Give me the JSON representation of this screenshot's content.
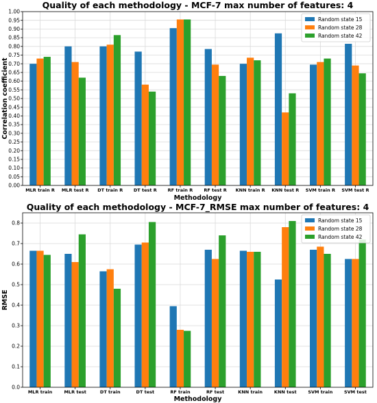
{
  "chart_data": [
    {
      "type": "bar",
      "title": "Quality of each methodology - MCF-7 max number of features: 4",
      "xlabel": "Methodology",
      "ylabel": "Correlation coefficient",
      "ylim": [
        0,
        1.0
      ],
      "yticks": [
        0.0,
        0.05,
        0.1,
        0.15,
        0.2,
        0.25,
        0.3,
        0.35,
        0.4,
        0.45,
        0.5,
        0.55,
        0.6,
        0.65,
        0.7,
        0.75,
        0.8,
        0.85,
        0.9,
        0.95,
        1.0
      ],
      "ytick_labels": [
        "0.00",
        "0.05",
        "0.10",
        "0.15",
        "0.20",
        "0.25",
        "0.30",
        "0.35",
        "0.40",
        "0.45",
        "0.50",
        "0.55",
        "0.60",
        "0.65",
        "0.70",
        "0.75",
        "0.80",
        "0.85",
        "0.90",
        "0.95",
        "1.00"
      ],
      "grid": true,
      "legend_position": "top-right",
      "categories": [
        "MLR train R",
        "MLR test R",
        "DT train R",
        "DT test R",
        "RF train R",
        "RF test R",
        "KNN train R",
        "KNN test R",
        "SVM train R",
        "SVM test R"
      ],
      "series": [
        {
          "name": "Random state 15",
          "color": "#1f77b4",
          "values": [
            0.7,
            0.8,
            0.8,
            0.77,
            0.905,
            0.785,
            0.7,
            0.875,
            0.695,
            0.815
          ]
        },
        {
          "name": "Random state 28",
          "color": "#ff7f0e",
          "values": [
            0.73,
            0.71,
            0.81,
            0.58,
            0.955,
            0.695,
            0.735,
            0.42,
            0.71,
            0.69
          ]
        },
        {
          "name": "Random state 42",
          "color": "#2ca02c",
          "values": [
            0.74,
            0.62,
            0.865,
            0.54,
            0.955,
            0.63,
            0.72,
            0.53,
            0.73,
            0.645
          ]
        }
      ]
    },
    {
      "type": "bar",
      "title": "Quality of each methodology - MCF-7_RMSE max number of features: 4",
      "xlabel": "Methodology",
      "ylabel": "RMSE",
      "ylim": [
        0,
        0.85
      ],
      "yticks": [
        0.0,
        0.1,
        0.2,
        0.3,
        0.4,
        0.5,
        0.6,
        0.7,
        0.8
      ],
      "ytick_labels": [
        "0.0",
        "0.1",
        "0.2",
        "0.3",
        "0.4",
        "0.5",
        "0.6",
        "0.7",
        "0.8"
      ],
      "grid": true,
      "legend_position": "top-right",
      "categories": [
        "MLR train",
        "MLR test",
        "DT train",
        "DT test",
        "RF train",
        "RF test",
        "KNN train",
        "KNN test",
        "SVM train",
        "SVM test"
      ],
      "series": [
        {
          "name": "Random state 15",
          "color": "#1f77b4",
          "values": [
            0.665,
            0.65,
            0.565,
            0.695,
            0.395,
            0.67,
            0.665,
            0.525,
            0.67,
            0.625
          ]
        },
        {
          "name": "Random state 28",
          "color": "#ff7f0e",
          "values": [
            0.665,
            0.61,
            0.575,
            0.705,
            0.28,
            0.625,
            0.66,
            0.78,
            0.685,
            0.625
          ]
        },
        {
          "name": "Random state 42",
          "color": "#2ca02c",
          "values": [
            0.645,
            0.745,
            0.48,
            0.805,
            0.275,
            0.74,
            0.66,
            0.81,
            0.65,
            0.72
          ]
        }
      ]
    }
  ]
}
